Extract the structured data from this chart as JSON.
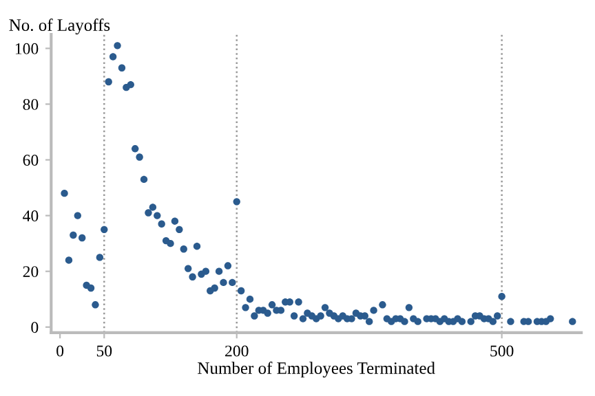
{
  "chart_data": {
    "type": "scatter",
    "xlabel": "Number of Employees Terminated",
    "ylabel": "No. of Layoffs",
    "x": [
      5,
      10,
      15,
      20,
      25,
      30,
      35,
      40,
      45,
      50,
      55,
      60,
      65,
      70,
      75,
      80,
      85,
      90,
      95,
      100,
      105,
      110,
      115,
      120,
      125,
      130,
      135,
      140,
      145,
      150,
      155,
      160,
      165,
      170,
      175,
      180,
      185,
      190,
      195,
      200,
      205,
      210,
      215,
      220,
      225,
      230,
      235,
      240,
      245,
      250,
      255,
      260,
      265,
      270,
      275,
      280,
      285,
      290,
      295,
      300,
      305,
      310,
      315,
      320,
      325,
      330,
      335,
      340,
      345,
      350,
      355,
      365,
      370,
      375,
      380,
      385,
      390,
      395,
      400,
      405,
      415,
      420,
      425,
      430,
      435,
      440,
      445,
      450,
      455,
      465,
      470,
      475,
      480,
      485,
      490,
      495,
      500,
      510,
      525,
      530,
      540,
      545,
      550,
      555,
      580
    ],
    "series": [
      {
        "color": "#2b5b8e",
        "values": [
          48,
          24,
          33,
          40,
          32,
          15,
          14,
          8,
          25,
          35,
          88,
          97,
          101,
          93,
          86,
          87,
          64,
          61,
          53,
          41,
          43,
          40,
          37,
          31,
          30,
          38,
          35,
          28,
          21,
          18,
          29,
          19,
          20,
          13,
          14,
          20,
          16,
          22,
          16,
          45,
          13,
          7,
          10,
          4,
          6,
          6,
          5,
          8,
          6,
          6,
          9,
          9,
          4,
          9,
          3,
          5,
          4,
          3,
          4,
          7,
          5,
          4,
          3,
          4,
          3,
          3,
          5,
          4,
          4,
          2,
          6,
          8,
          3,
          2,
          3,
          3,
          2,
          7,
          3,
          2,
          3,
          3,
          3,
          2,
          3,
          2,
          2,
          3,
          2,
          2,
          4,
          4,
          3,
          3,
          2,
          4,
          11,
          2,
          2,
          2,
          2,
          2,
          2,
          3,
          2
        ]
      }
    ],
    "xlim": [
      -10,
      590
    ],
    "xticks": [
      0,
      50,
      200,
      500
    ],
    "ylim": [
      -2,
      105
    ],
    "yticks": [
      0,
      20,
      40,
      60,
      80,
      100
    ],
    "ref_lines": [
      {
        "axis": "x",
        "value": 50,
        "color": "#999999",
        "line_style": "dotted"
      },
      {
        "axis": "x",
        "value": 200,
        "color": "#999999",
        "line_style": "dotted"
      },
      {
        "axis": "x",
        "value": 500,
        "color": "#999999",
        "line_style": "dotted"
      }
    ],
    "marker": "circle",
    "grid": false,
    "legend": false
  }
}
